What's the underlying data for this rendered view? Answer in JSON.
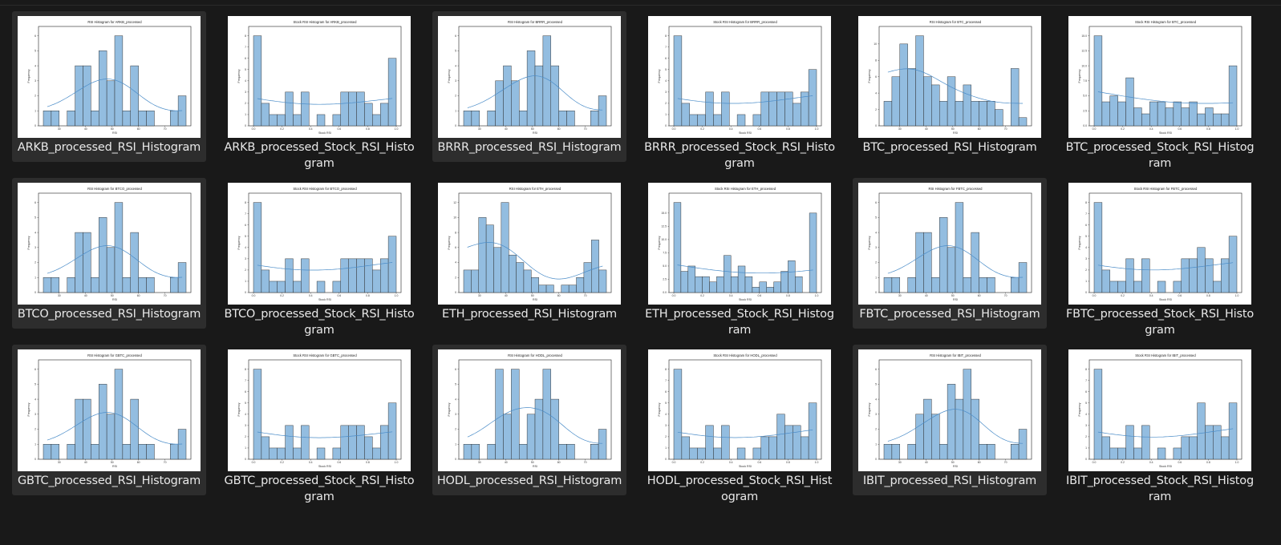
{
  "files": [
    {
      "name": "ARKB_processed_RSI_Histogram",
      "title": "RSI Histogram for ARKB_processed",
      "kind": "rsi",
      "selected": true,
      "bars": [
        1,
        1,
        0,
        1,
        4,
        4,
        1,
        5,
        3,
        6,
        1,
        4,
        1,
        1,
        0,
        0,
        1,
        2
      ]
    },
    {
      "name": "ARKB_processed_Stock_RSI_Histogram",
      "title": "Stock RSI Histogram for ARKB_processed",
      "kind": "stock",
      "selected": false,
      "bars": [
        8,
        2,
        1,
        1,
        3,
        1,
        3,
        0,
        1,
        0,
        1,
        3,
        3,
        3,
        2,
        1,
        2,
        6
      ]
    },
    {
      "name": "BRRR_processed_RSI_Histogram",
      "title": "RSI Histogram for BRRR_processed",
      "kind": "rsi",
      "selected": true,
      "bars": [
        1,
        1,
        0,
        1,
        3,
        4,
        3,
        1,
        5,
        4,
        6,
        4,
        1,
        1,
        0,
        0,
        1,
        2
      ]
    },
    {
      "name": "BRRR_processed_Stock_RSI_Histogram",
      "title": "Stock RSI Histogram for BRRR_processed",
      "kind": "stock",
      "selected": false,
      "bars": [
        8,
        2,
        1,
        1,
        3,
        1,
        3,
        0,
        1,
        0,
        1,
        3,
        3,
        3,
        3,
        2,
        3,
        5
      ]
    },
    {
      "name": "BTC_processed_RSI_Histogram",
      "title": "RSI Histogram for BTC_processed",
      "kind": "rsi",
      "selected": false,
      "bars": [
        3,
        6,
        10,
        7,
        11,
        6,
        5,
        3,
        6,
        3,
        5,
        3,
        3,
        3,
        2,
        0,
        7,
        1
      ]
    },
    {
      "name": "BTC_processed_Stock_RSI_Histogram",
      "title": "Stock RSI Histogram for BTC_processed",
      "kind": "stock",
      "selected": false,
      "bars": [
        15,
        4,
        5,
        4,
        8,
        3,
        2,
        4,
        4,
        3,
        4,
        3,
        4,
        2,
        3,
        2,
        2,
        10
      ]
    },
    {
      "name": "BTCO_processed_RSI_Histogram",
      "title": "RSI Histogram for BTCO_processed",
      "kind": "rsi",
      "selected": true,
      "bars": [
        1,
        1,
        0,
        1,
        4,
        4,
        1,
        5,
        3,
        6,
        1,
        4,
        1,
        1,
        0,
        0,
        1,
        2
      ]
    },
    {
      "name": "BTCO_processed_Stock_RSI_Histogram",
      "title": "Stock RSI Histogram for BTCO_processed",
      "kind": "stock",
      "selected": false,
      "bars": [
        8,
        2,
        1,
        1,
        3,
        1,
        3,
        0,
        1,
        0,
        1,
        3,
        3,
        3,
        3,
        2,
        3,
        5
      ]
    },
    {
      "name": "ETH_processed_RSI_Histogram",
      "title": "RSI Histogram for ETH_processed",
      "kind": "rsi",
      "selected": false,
      "bars": [
        3,
        3,
        10,
        9,
        6,
        12,
        5,
        4,
        3,
        2,
        1,
        1,
        0,
        1,
        1,
        2,
        4,
        7,
        3
      ]
    },
    {
      "name": "ETH_processed_Stock_RSI_Histogram",
      "title": "Stock RSI Histogram for ETH_processed",
      "kind": "stock",
      "selected": false,
      "bars": [
        17,
        4,
        5,
        3,
        3,
        2,
        3,
        7,
        3,
        5,
        3,
        1,
        2,
        1,
        2,
        4,
        6,
        3,
        0,
        15
      ]
    },
    {
      "name": "FBTC_processed_RSI_Histogram",
      "title": "RSI Histogram for FBTC_processed",
      "kind": "rsi",
      "selected": true,
      "bars": [
        1,
        1,
        0,
        1,
        4,
        4,
        1,
        5,
        3,
        6,
        1,
        4,
        1,
        1,
        0,
        0,
        1,
        2
      ]
    },
    {
      "name": "FBTC_processed_Stock_RSI_Histogram",
      "title": "Stock RSI Histogram for FBTC_processed",
      "kind": "stock",
      "selected": false,
      "bars": [
        8,
        2,
        1,
        1,
        3,
        1,
        3,
        0,
        1,
        0,
        1,
        3,
        3,
        4,
        3,
        1,
        3,
        5
      ]
    },
    {
      "name": "GBTC_processed_RSI_Histogram",
      "title": "RSI Histogram for GBTC_processed",
      "kind": "rsi",
      "selected": true,
      "bars": [
        1,
        1,
        0,
        1,
        4,
        4,
        1,
        5,
        3,
        6,
        1,
        4,
        1,
        1,
        0,
        0,
        1,
        2
      ]
    },
    {
      "name": "GBTC_processed_Stock_RSI_Histogram",
      "title": "Stock RSI Histogram for GBTC_processed",
      "kind": "stock",
      "selected": false,
      "bars": [
        8,
        2,
        1,
        1,
        3,
        1,
        3,
        0,
        1,
        0,
        1,
        3,
        3,
        3,
        2,
        1,
        3,
        5
      ]
    },
    {
      "name": "HODL_processed_RSI_Histogram",
      "title": "RSI Histogram for HODL_processed",
      "kind": "rsi",
      "selected": true,
      "bars": [
        1,
        1,
        0,
        1,
        6,
        3,
        6,
        1,
        3,
        4,
        6,
        4,
        1,
        1,
        0,
        0,
        1,
        2
      ]
    },
    {
      "name": "HODL_processed_Stock_RSI_Histogram",
      "title": "Stock RSI Histogram for HODL_processed",
      "kind": "stock",
      "selected": false,
      "bars": [
        8,
        2,
        1,
        1,
        3,
        1,
        3,
        0,
        1,
        0,
        1,
        2,
        2,
        4,
        3,
        3,
        2,
        5
      ]
    },
    {
      "name": "IBIT_processed_RSI_Histogram",
      "title": "RSI Histogram for IBIT_processed",
      "kind": "rsi",
      "selected": true,
      "bars": [
        1,
        1,
        0,
        1,
        3,
        4,
        3,
        1,
        5,
        4,
        6,
        4,
        1,
        1,
        0,
        0,
        1,
        2
      ]
    },
    {
      "name": "IBIT_processed_Stock_RSI_Histogram",
      "title": "Stock RSI Histogram for IBIT_processed",
      "kind": "stock",
      "selected": false,
      "bars": [
        8,
        2,
        1,
        1,
        3,
        1,
        3,
        0,
        1,
        0,
        1,
        2,
        2,
        5,
        3,
        3,
        2,
        5
      ]
    }
  ],
  "colors": {
    "bar_fill": "#93bde0",
    "bar_stroke": "#2b2b2b",
    "kde": "#4a8cc8",
    "selected_tile": "#2d2d2d",
    "background": "#191919"
  },
  "axis": {
    "rsi_xlabel": "RSI",
    "rsi_ticks": [
      "30",
      "40",
      "50",
      "60",
      "70"
    ],
    "stock_xlabel": "Stock RSI",
    "stock_ticks": [
      "0.0",
      "0.2",
      "0.4",
      "0.6",
      "0.8",
      "1.0"
    ],
    "ylabel": "Frequency"
  }
}
